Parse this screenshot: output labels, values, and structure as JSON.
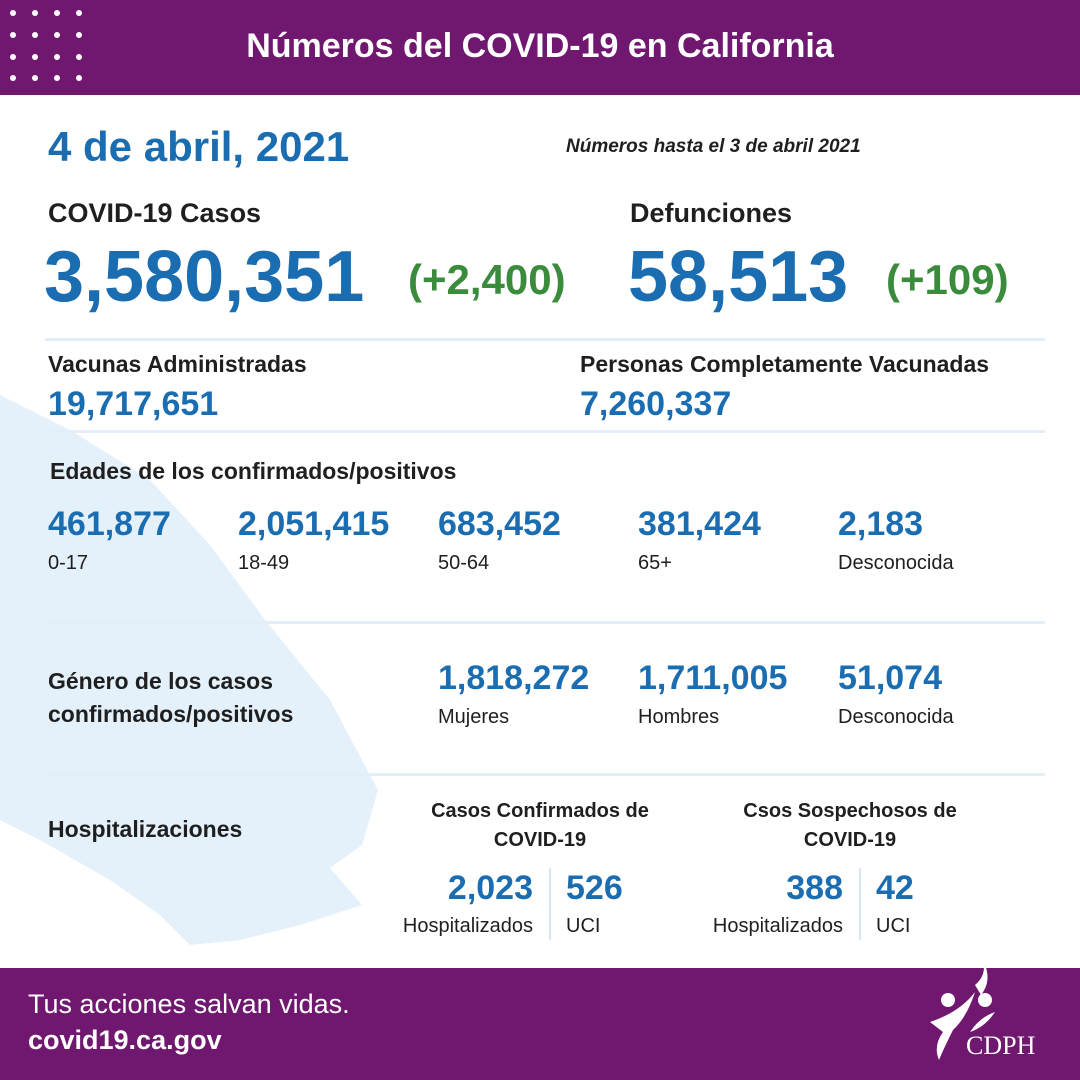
{
  "header": {
    "title": "Números del COVID-19 en California"
  },
  "date": "4 de abril, 2021",
  "note": "Números hasta el 3 de abril 2021",
  "cases": {
    "label": "COVID-19 Casos",
    "value": "3,580,351",
    "change": "(+2,400)"
  },
  "deaths": {
    "label": "Defunciones",
    "value": "58,513",
    "change": "(+109)"
  },
  "vaccines": {
    "label": "Vacunas Administradas",
    "value": "19,717,651"
  },
  "fully_vaccinated": {
    "label": "Personas Completamente Vacunadas",
    "value": "7,260,337"
  },
  "ages": {
    "title": "Edades de los confirmados/positivos",
    "groups": [
      {
        "value": "461,877",
        "label": "0-17"
      },
      {
        "value": "2,051,415",
        "label": "18-49"
      },
      {
        "value": "683,452",
        "label": "50-64"
      },
      {
        "value": "381,424",
        "label": "65+"
      },
      {
        "value": "2,183",
        "label": "Desconocida"
      }
    ]
  },
  "gender": {
    "title": "Género de los casos confirmados/positivos",
    "groups": [
      {
        "value": "1,818,272",
        "label": "Mujeres"
      },
      {
        "value": "1,711,005",
        "label": "Hombres"
      },
      {
        "value": "51,074",
        "label": "Desconocida"
      }
    ]
  },
  "hospital": {
    "title": "Hospitalizaciones",
    "groups": [
      {
        "title": "Casos Confirmados de COVID-19",
        "items": [
          {
            "value": "2,023",
            "label": "Hospitalizados"
          },
          {
            "value": "526",
            "label": "UCI"
          }
        ]
      },
      {
        "title": "Csos Sospechosos de COVID-19",
        "items": [
          {
            "value": "388",
            "label": "Hospitalizados"
          },
          {
            "value": "42",
            "label": "UCI"
          }
        ]
      }
    ]
  },
  "footer": {
    "slogan": "Tus acciones salvan vidas.",
    "url": "covid19.ca.gov",
    "logo": "CDPH"
  }
}
